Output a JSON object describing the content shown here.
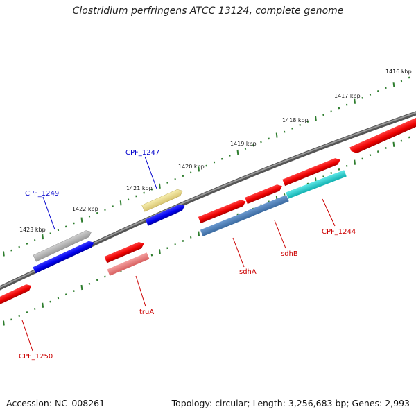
{
  "title": "Clostridium perfringens ATCC 13124, complete genome",
  "footer": {
    "accession": "Accession: NC_008261",
    "summary": "Topology: circular; Length: 3,256,683 bp; Genes: 2,993"
  },
  "colors": {
    "backbone": "#777777",
    "tick": "#2e7d2e",
    "forward_label": "#0000cc",
    "reverse_label": "#cc0000"
  },
  "kbp_labels": [
    "1416 kbp",
    "1417 kbp",
    "1418 kbp",
    "1419 kbp",
    "1420 kbp",
    "1421 kbp",
    "1422 kbp",
    "1423 kbp"
  ],
  "genes": [
    {
      "id": "CPF_1249",
      "label": "CPF_1249",
      "strand": "forward",
      "color": "#0000ee"
    },
    {
      "id": "CPF_1247",
      "label": "CPF_1247",
      "strand": "forward",
      "color": "#0000ee"
    },
    {
      "id": "CPF_1250",
      "label": "CPF_1250",
      "strand": "reverse",
      "color": "#ee0000"
    },
    {
      "id": "truA",
      "label": "truA",
      "strand": "reverse",
      "color": "#ee0000"
    },
    {
      "id": "sdhA",
      "label": "sdhA",
      "strand": "reverse",
      "color": "#ee0000"
    },
    {
      "id": "sdhB",
      "label": "sdhB",
      "strand": "reverse",
      "color": "#ee0000"
    },
    {
      "id": "CPF_1244",
      "label": "CPF_1244",
      "strand": "reverse",
      "color": "#ee0000"
    }
  ],
  "cds_features": [
    {
      "strand": "forward",
      "color": "#0000ee"
    },
    {
      "strand": "forward",
      "color": "#0000ee"
    },
    {
      "strand": "forward",
      "color": "#ee0000"
    },
    {
      "strand": "forward",
      "color": "#ee0000"
    },
    {
      "strand": "forward",
      "color": "#ee0000"
    },
    {
      "strand": "forward",
      "color": "#ee0000"
    },
    {
      "strand": "forward",
      "color": "#ee0000"
    },
    {
      "strand": "forward",
      "color": "#ee0000"
    }
  ],
  "inner_features": [
    {
      "color": "#aaaaaa"
    },
    {
      "color": "#eedd88"
    },
    {
      "color": "#ee8080"
    },
    {
      "color": "#4a7fb5"
    },
    {
      "color": "#4a7fb5"
    },
    {
      "color": "#22cccc"
    }
  ]
}
